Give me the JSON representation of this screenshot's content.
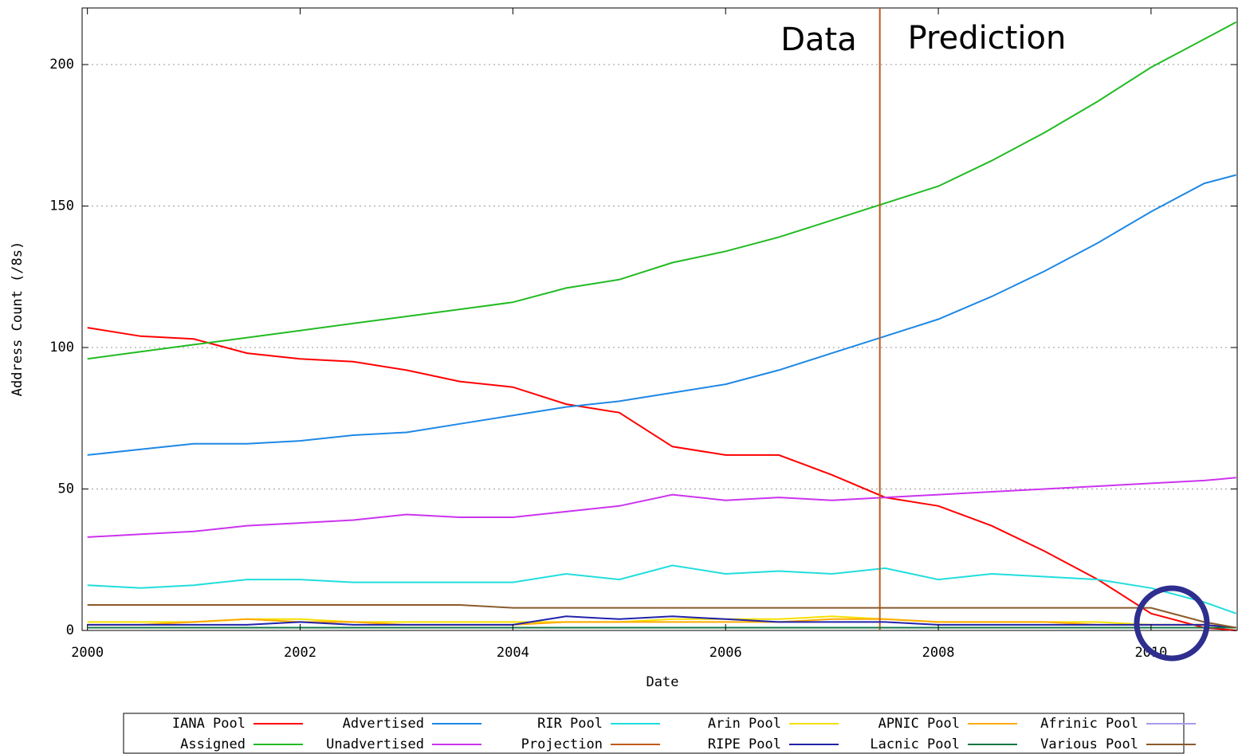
{
  "chart_data": {
    "type": "line",
    "xlabel": "Date",
    "ylabel": "Address Count (/8s)",
    "annotations": [
      "Data",
      "Prediction"
    ],
    "xlim": [
      1999.95,
      2010.81
    ],
    "ylim": [
      0,
      220
    ],
    "xticks": [
      2000,
      2002,
      2004,
      2006,
      2008,
      2010
    ],
    "yticks": [
      0,
      50,
      100,
      150,
      200
    ],
    "grid": true,
    "x": [
      2000,
      2000.5,
      2001,
      2001.5,
      2002,
      2002.5,
      2003,
      2003.5,
      2004,
      2004.5,
      2005,
      2005.5,
      2006,
      2006.5,
      2007,
      2007.5,
      2008,
      2008.5,
      2009,
      2009.5,
      2010,
      2010.5,
      2010.8
    ],
    "series": [
      {
        "name": "IANA Pool",
        "color": "#ff0000",
        "values": [
          107,
          104,
          103,
          98,
          96,
          95,
          92,
          88,
          86,
          80,
          77,
          65,
          62,
          62,
          55,
          47,
          44,
          37,
          28,
          18,
          6,
          1,
          0
        ]
      },
      {
        "name": "Advertised",
        "color": "#1e88e5",
        "values": [
          62,
          64,
          66,
          66,
          67,
          69,
          70,
          73,
          76,
          79,
          81,
          84,
          87,
          92,
          98,
          104,
          110,
          118,
          127,
          137,
          148,
          158,
          161
        ]
      },
      {
        "name": "RIR Pool",
        "color": "#22dddd",
        "values": [
          16,
          15,
          16,
          18,
          18,
          17,
          17,
          17,
          17,
          20,
          18,
          23,
          20,
          21,
          20,
          22,
          18,
          20,
          19,
          18,
          15,
          10,
          6
        ]
      },
      {
        "name": "Arin Pool",
        "color": "#f5e000",
        "values": [
          3,
          3,
          3,
          4,
          4,
          3,
          3,
          3,
          3,
          3,
          3,
          4,
          4,
          4,
          5,
          4,
          3,
          3,
          3,
          3,
          2,
          2,
          1
        ]
      },
      {
        "name": "APNIC Pool",
        "color": "#ffaa00",
        "values": [
          2,
          2,
          3,
          4,
          3,
          3,
          2,
          2,
          2,
          3,
          3,
          3,
          3,
          3,
          4,
          4,
          3,
          3,
          3,
          2,
          2,
          2,
          1
        ]
      },
      {
        "name": "Afrinic Pool",
        "color": "#aa99ee",
        "values": [
          1,
          1,
          1,
          1,
          1,
          1,
          1,
          1,
          1,
          1,
          1,
          1,
          1,
          1,
          1,
          1,
          1,
          1,
          1,
          1,
          1,
          1,
          1
        ]
      },
      {
        "name": "Assigned",
        "color": "#22bb22",
        "values": [
          96,
          98.5,
          101,
          103.5,
          106,
          108.5,
          111,
          113.5,
          116,
          121,
          124,
          130,
          134,
          139,
          145,
          151,
          157,
          166,
          176,
          187,
          199,
          209,
          215
        ]
      },
      {
        "name": "Unadvertised",
        "color": "#cc33ee",
        "values": [
          33,
          34,
          35,
          37,
          38,
          39,
          41,
          40,
          40,
          42,
          44,
          48,
          46,
          47,
          46,
          47,
          48,
          49,
          50,
          51,
          52,
          53,
          54
        ]
      },
      {
        "name": "Projection",
        "color": "#c05a1a",
        "x": [
          2007.45,
          2007.45
        ],
        "values": [
          0,
          220
        ]
      },
      {
        "name": "RIPE Pool",
        "color": "#2222aa",
        "values": [
          2,
          2,
          2,
          2,
          3,
          2,
          2,
          2,
          2,
          5,
          4,
          5,
          4,
          3,
          3,
          3,
          2,
          2,
          2,
          2,
          2,
          2,
          1
        ]
      },
      {
        "name": "Lacnic Pool",
        "color": "#117744",
        "values": [
          1,
          1,
          1,
          1,
          1,
          1,
          1,
          1,
          1,
          1,
          1,
          1,
          1,
          1,
          1,
          1,
          1,
          1,
          1,
          1,
          1,
          1,
          1
        ]
      },
      {
        "name": "Various Pool",
        "color": "#8b5a2b",
        "values": [
          9,
          9,
          9,
          9,
          9,
          9,
          9,
          9,
          8,
          8,
          8,
          8,
          8,
          8,
          8,
          8,
          8,
          8,
          8,
          8,
          8,
          3,
          1
        ]
      }
    ]
  }
}
